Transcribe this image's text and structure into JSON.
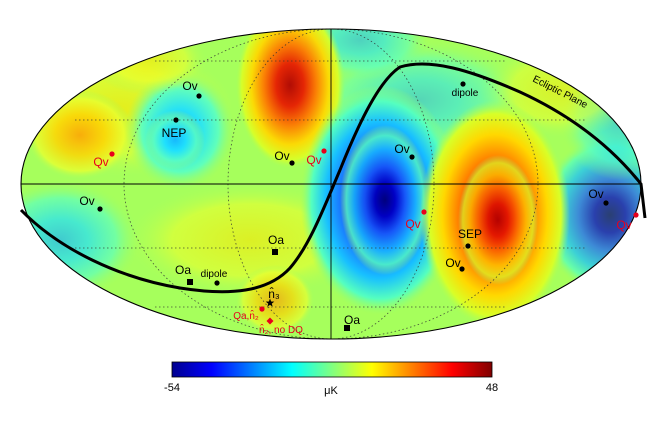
{
  "map": {
    "projection": "Mollweide",
    "features": {
      "ecliptic_plane_label": "Ecliptic Plane"
    },
    "markers": [
      {
        "id": "ov-1",
        "label": "Ov",
        "shape": "circle",
        "color": "#000000"
      },
      {
        "id": "nep",
        "label": "NEP",
        "shape": "circle",
        "color": "#000000"
      },
      {
        "id": "qv-1",
        "label": "Qv",
        "shape": "circle",
        "color": "#e8001c"
      },
      {
        "id": "ov-2",
        "label": "Ov",
        "shape": "circle",
        "color": "#000000"
      },
      {
        "id": "qv-2",
        "label": "Qv",
        "shape": "circle",
        "color": "#e8001c"
      },
      {
        "id": "ov-3",
        "label": "Ov",
        "shape": "circle",
        "color": "#000000"
      },
      {
        "id": "dipole-north",
        "label": "dipole",
        "shape": "circle",
        "color": "#000000"
      },
      {
        "id": "ov-4",
        "label": "Ov",
        "shape": "circle",
        "color": "#000000"
      },
      {
        "id": "qv-3",
        "label": "Qv",
        "shape": "circle",
        "color": "#e8001c"
      },
      {
        "id": "sep",
        "label": "SEP",
        "shape": "circle",
        "color": "#000000"
      },
      {
        "id": "ov-5",
        "label": "Ov",
        "shape": "circle",
        "color": "#000000"
      },
      {
        "id": "ov-6",
        "label": "Ov",
        "shape": "circle",
        "color": "#000000"
      },
      {
        "id": "qv-4",
        "label": "Qv",
        "shape": "circle",
        "color": "#e8001c"
      },
      {
        "id": "oa-1",
        "label": "Oa",
        "shape": "square",
        "color": "#000000"
      },
      {
        "id": "oa-2",
        "label": "Oa",
        "shape": "square",
        "color": "#000000"
      },
      {
        "id": "dipole-south",
        "label": "dipole",
        "shape": "circle",
        "color": "#000000"
      },
      {
        "id": "n3",
        "label": "n̂₃",
        "shape": "star",
        "color": "#000000"
      },
      {
        "id": "qa-n2",
        "label": "Qa,n̂₂",
        "shape": "circle",
        "color": "#e8001c"
      },
      {
        "id": "n2-nodq",
        "label": "n̂₂, no DQ",
        "shape": "diamond",
        "color": "#e8001c"
      },
      {
        "id": "oa-3",
        "label": "Oa",
        "shape": "square",
        "color": "#000000"
      }
    ]
  },
  "colorbar": {
    "min_label": "-54",
    "max_label": "48",
    "unit_label": "μK",
    "min": -54,
    "max": 48
  }
}
